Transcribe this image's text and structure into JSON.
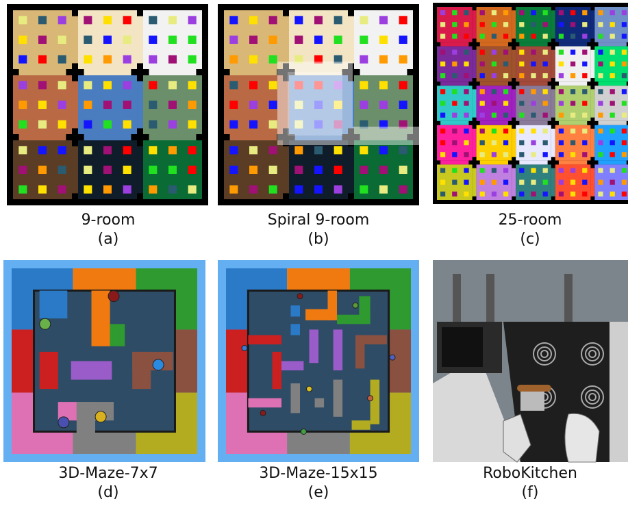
{
  "panels": [
    {
      "title": "9-room",
      "label": "(a)"
    },
    {
      "title": "Spiral 9-room",
      "label": "(b)"
    },
    {
      "title": "25-room",
      "label": "(c)"
    },
    {
      "title": "3D-Maze-7x7",
      "label": "(d)"
    },
    {
      "title": "3D-Maze-15x15",
      "label": "(e)"
    },
    {
      "title": "RoboKitchen",
      "label": "(f)"
    }
  ]
}
